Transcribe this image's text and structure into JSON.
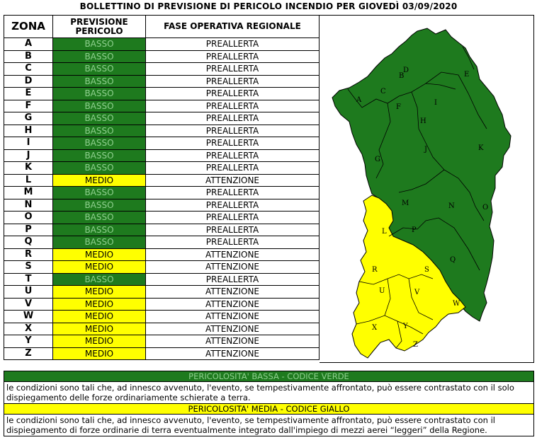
{
  "title": "BOLLETTINO DI PREVISIONE DI PERICOLO INCENDIO PER GIOVEDÌ 03/09/2020",
  "headers": {
    "zona": "ZONA",
    "previsione_line1": "PREVISIONE",
    "previsione_line2": "PERICOLO",
    "fase": "FASE OPERATIVA REGIONALE"
  },
  "colors": {
    "basso": "#1e7a1e",
    "medio": "#ffff00"
  },
  "zones": [
    {
      "zona": "A",
      "pericolo": "BASSO",
      "fase": "PREALLERTA"
    },
    {
      "zona": "B",
      "pericolo": "BASSO",
      "fase": "PREALLERTA"
    },
    {
      "zona": "C",
      "pericolo": "BASSO",
      "fase": "PREALLERTA"
    },
    {
      "zona": "D",
      "pericolo": "BASSO",
      "fase": "PREALLERTA"
    },
    {
      "zona": "E",
      "pericolo": "BASSO",
      "fase": "PREALLERTA"
    },
    {
      "zona": "F",
      "pericolo": "BASSO",
      "fase": "PREALLERTA"
    },
    {
      "zona": "G",
      "pericolo": "BASSO",
      "fase": "PREALLERTA"
    },
    {
      "zona": "H",
      "pericolo": "BASSO",
      "fase": "PREALLERTA"
    },
    {
      "zona": "I",
      "pericolo": "BASSO",
      "fase": "PREALLERTA"
    },
    {
      "zona": "J",
      "pericolo": "BASSO",
      "fase": "PREALLERTA"
    },
    {
      "zona": "K",
      "pericolo": "BASSO",
      "fase": "PREALLERTA"
    },
    {
      "zona": "L",
      "pericolo": "MEDIO",
      "fase": "ATTENZIONE"
    },
    {
      "zona": "M",
      "pericolo": "BASSO",
      "fase": "PREALLERTA"
    },
    {
      "zona": "N",
      "pericolo": "BASSO",
      "fase": "PREALLERTA"
    },
    {
      "zona": "O",
      "pericolo": "BASSO",
      "fase": "PREALLERTA"
    },
    {
      "zona": "P",
      "pericolo": "BASSO",
      "fase": "PREALLERTA"
    },
    {
      "zona": "Q",
      "pericolo": "BASSO",
      "fase": "PREALLERTA"
    },
    {
      "zona": "R",
      "pericolo": "MEDIO",
      "fase": "ATTENZIONE"
    },
    {
      "zona": "S",
      "pericolo": "MEDIO",
      "fase": "ATTENZIONE"
    },
    {
      "zona": "T",
      "pericolo": "BASSO",
      "fase": "PREALLERTA"
    },
    {
      "zona": "U",
      "pericolo": "MEDIO",
      "fase": "ATTENZIONE"
    },
    {
      "zona": "V",
      "pericolo": "MEDIO",
      "fase": "ATTENZIONE"
    },
    {
      "zona": "W",
      "pericolo": "MEDIO",
      "fase": "ATTENZIONE"
    },
    {
      "zona": "X",
      "pericolo": "MEDIO",
      "fase": "ATTENZIONE"
    },
    {
      "zona": "Y",
      "pericolo": "MEDIO",
      "fase": "ATTENZIONE"
    },
    {
      "zona": "Z",
      "pericolo": "MEDIO",
      "fase": "ATTENZIONE"
    }
  ],
  "map_labels": [
    "A",
    "B",
    "C",
    "D",
    "E",
    "F",
    "G",
    "H",
    "I",
    "J",
    "K",
    "L",
    "M",
    "N",
    "O",
    "P",
    "Q",
    "R",
    "S",
    "U",
    "V",
    "W",
    "X",
    "Y",
    "Z"
  ],
  "legend": {
    "bassa_title": "PERICOLOSITA' BASSA - CODICE VERDE",
    "bassa_text": "le condizioni sono tali che, ad innesco avvenuto, l'evento, se tempestivamente affrontato, può essere contrastato con il solo dispiegamento delle forze ordinariamente schierate a terra.",
    "media_title": "PERICOLOSITA' MEDIA - CODICE GIALLO",
    "media_text": "le condizioni sono tali che, ad innesco avvenuto, l'evento, se tempestivamente affrontato, può essere contrastato con il dispiegamento di forze ordinarie di terra eventualmente integrato dall'impiego di mezzi aerei “leggeri” della Regione."
  }
}
